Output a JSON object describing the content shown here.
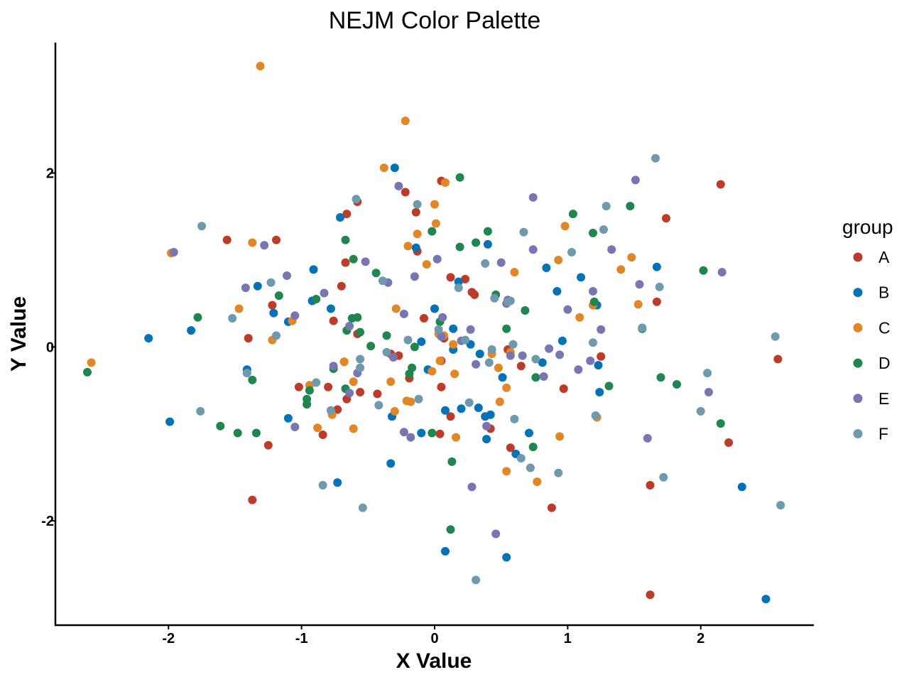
{
  "chart_data": {
    "type": "scatter",
    "title": "NEJM Color Palette",
    "xlabel": "X Value",
    "ylabel": "Y Value",
    "xlim": [
      -2.85,
      2.85
    ],
    "ylim": [
      -3.2,
      3.5
    ],
    "xticks": [
      -2,
      -1,
      0,
      1,
      2
    ],
    "yticks": [
      -2,
      0,
      2
    ],
    "grid": false,
    "legend": {
      "title": "group",
      "placement": "right"
    },
    "series": [
      {
        "name": "A",
        "color": "#BC3C29",
        "points": [
          [
            -1.56,
            1.23
          ],
          [
            -1.19,
            1.23
          ],
          [
            -0.66,
            1.53
          ],
          [
            -0.58,
            1.67
          ],
          [
            -0.67,
            0.97
          ],
          [
            -0.7,
            0.7
          ],
          [
            -0.76,
            0.3
          ],
          [
            -1.4,
            0.1
          ],
          [
            -1.22,
            0.48
          ],
          [
            -0.22,
            1.78
          ],
          [
            -0.13,
            1.1
          ],
          [
            -0.14,
            1.55
          ],
          [
            0.05,
            1.91
          ],
          [
            0.12,
            0.8
          ],
          [
            0.23,
            0.78
          ],
          [
            0.28,
            0.63
          ],
          [
            0.3,
            0.6
          ],
          [
            0.07,
            0.1
          ],
          [
            -0.08,
            0.33
          ],
          [
            -0.27,
            -0.1
          ],
          [
            -0.33,
            -0.08
          ],
          [
            -0.58,
            0.15
          ],
          [
            -0.68,
            -0.17
          ],
          [
            -0.43,
            -0.54
          ],
          [
            -0.56,
            -0.52
          ],
          [
            -0.66,
            -0.6
          ],
          [
            -0.8,
            -0.46
          ],
          [
            -0.73,
            -0.72
          ],
          [
            -1.02,
            -0.46
          ],
          [
            -0.84,
            -1.01
          ],
          [
            -1.25,
            -1.13
          ],
          [
            -1.37,
            -1.76
          ],
          [
            -0.19,
            -0.36
          ],
          [
            0.05,
            -0.46
          ],
          [
            0.05,
            -0.16
          ],
          [
            0.04,
            -1.0
          ],
          [
            0.12,
            -0.8
          ],
          [
            0.42,
            -0.94
          ],
          [
            0.57,
            -1.16
          ],
          [
            0.55,
            -0.03
          ],
          [
            0.65,
            -0.22
          ],
          [
            0.88,
            -1.85
          ],
          [
            0.97,
            -0.48
          ],
          [
            1.25,
            -0.11
          ],
          [
            1.62,
            -1.59
          ],
          [
            1.62,
            -2.85
          ],
          [
            1.67,
            0.52
          ],
          [
            1.74,
            1.48
          ],
          [
            2.15,
            1.87
          ],
          [
            2.21,
            -1.1
          ],
          [
            2.58,
            -0.14
          ]
        ]
      },
      {
        "name": "B",
        "color": "#0072B5",
        "points": [
          [
            -2.15,
            0.1
          ],
          [
            -1.99,
            -0.86
          ],
          [
            -1.83,
            0.19
          ],
          [
            -1.41,
            -0.26
          ],
          [
            -1.33,
            0.7
          ],
          [
            -1.21,
            0.39
          ],
          [
            -1.1,
            0.29
          ],
          [
            -1.1,
            -0.82
          ],
          [
            -0.91,
            0.89
          ],
          [
            -0.92,
            0.53
          ],
          [
            -0.78,
            0.44
          ],
          [
            -0.71,
            1.49
          ],
          [
            -0.73,
            -1.56
          ],
          [
            -0.3,
            2.06
          ],
          [
            -0.32,
            -0.8
          ],
          [
            -0.33,
            -1.34
          ],
          [
            -0.14,
            1.14
          ],
          [
            -0.1,
            0.06
          ],
          [
            -0.1,
            -0.99
          ],
          [
            -0.05,
            -0.26
          ],
          [
            0.0,
            0.44
          ],
          [
            0.08,
            -0.73
          ],
          [
            0.08,
            -2.35
          ],
          [
            0.14,
            0.21
          ],
          [
            0.14,
            -0.03
          ],
          [
            0.18,
            0.75
          ],
          [
            0.2,
            -0.71
          ],
          [
            0.27,
            0.03
          ],
          [
            0.34,
            -0.08
          ],
          [
            0.33,
            -0.7
          ],
          [
            0.38,
            -0.8
          ],
          [
            0.39,
            -1.06
          ],
          [
            0.4,
            1.18
          ],
          [
            0.42,
            -0.78
          ],
          [
            0.51,
            -0.35
          ],
          [
            0.54,
            -2.42
          ],
          [
            0.61,
            -1.23
          ],
          [
            0.71,
            -0.99
          ],
          [
            0.81,
            -0.18
          ],
          [
            0.84,
            0.91
          ],
          [
            0.92,
            0.64
          ],
          [
            0.96,
            0.07
          ],
          [
            1.1,
            0.8
          ],
          [
            1.22,
            0.48
          ],
          [
            1.23,
            -0.21
          ],
          [
            1.24,
            -0.52
          ],
          [
            1.67,
            0.92
          ],
          [
            2.31,
            -1.61
          ],
          [
            2.49,
            -2.9
          ]
        ]
      },
      {
        "name": "C",
        "color": "#E18727",
        "points": [
          [
            -2.58,
            -0.18
          ],
          [
            -1.98,
            1.08
          ],
          [
            -1.47,
            0.44
          ],
          [
            -1.37,
            1.2
          ],
          [
            -1.22,
            0.08
          ],
          [
            -1.31,
            3.23
          ],
          [
            -0.94,
            -0.44
          ],
          [
            -0.88,
            -0.93
          ],
          [
            -1.07,
            0.3
          ],
          [
            -0.77,
            -0.78
          ],
          [
            -0.68,
            -0.17
          ],
          [
            -0.61,
            -0.4
          ],
          [
            -0.61,
            -0.94
          ],
          [
            -0.38,
            2.06
          ],
          [
            -0.33,
            -0.4
          ],
          [
            -0.3,
            -0.74
          ],
          [
            -0.29,
            0.44
          ],
          [
            -0.22,
            2.6
          ],
          [
            -0.2,
            1.16
          ],
          [
            -0.18,
            -0.63
          ],
          [
            -0.21,
            -0.62
          ],
          [
            -0.13,
            1.3
          ],
          [
            -0.06,
            0.95
          ],
          [
            -0.02,
            -0.28
          ],
          [
            0.0,
            1.64
          ],
          [
            0.01,
            1.42
          ],
          [
            0.03,
            0.15
          ],
          [
            0.04,
            -0.16
          ],
          [
            0.07,
            0.13
          ],
          [
            0.08,
            1.89
          ],
          [
            0.14,
            0.03
          ],
          [
            0.15,
            -0.31
          ],
          [
            0.16,
            -1.04
          ],
          [
            0.43,
            -0.08
          ],
          [
            0.48,
            -0.24
          ],
          [
            0.49,
            -0.63
          ],
          [
            0.54,
            -1.43
          ],
          [
            0.54,
            -0.47
          ],
          [
            0.57,
            -0.06
          ],
          [
            0.6,
            0.86
          ],
          [
            0.77,
            -1.55
          ],
          [
            0.93,
            1.0
          ],
          [
            0.94,
            -1.03
          ],
          [
            0.98,
            1.39
          ],
          [
            1.09,
            0.34
          ],
          [
            1.19,
            0.48
          ],
          [
            1.22,
            -0.81
          ],
          [
            1.4,
            0.89
          ],
          [
            1.48,
            1.03
          ],
          [
            1.53,
            0.49
          ]
        ]
      },
      {
        "name": "D",
        "color": "#20854E",
        "points": [
          [
            -2.61,
            -0.29
          ],
          [
            -1.78,
            0.34
          ],
          [
            -1.61,
            -0.91
          ],
          [
            -1.48,
            -0.99
          ],
          [
            -1.37,
            -0.38
          ],
          [
            -1.34,
            -0.99
          ],
          [
            -1.17,
            0.59
          ],
          [
            -0.96,
            -0.6
          ],
          [
            -0.96,
            -0.66
          ],
          [
            -0.94,
            -0.5
          ],
          [
            -0.89,
            0.55
          ],
          [
            -0.76,
            -0.25
          ],
          [
            -0.67,
            1.23
          ],
          [
            -0.66,
            0.19
          ],
          [
            -0.67,
            -0.48
          ],
          [
            -0.61,
            1.01
          ],
          [
            -0.58,
            0.34
          ],
          [
            -0.56,
            0.17
          ],
          [
            -0.48,
            0.01
          ],
          [
            -0.44,
            0.85
          ],
          [
            -0.36,
            0.13
          ],
          [
            -0.19,
            -0.31
          ],
          [
            -0.17,
            -0.24
          ],
          [
            -0.15,
            0.0
          ],
          [
            -0.02,
            1.33
          ],
          [
            -0.02,
            -0.99
          ],
          [
            0.04,
            0.29
          ],
          [
            0.13,
            -1.32
          ],
          [
            0.12,
            -2.1
          ],
          [
            0.19,
            1.95
          ],
          [
            0.19,
            1.15
          ],
          [
            0.31,
            1.2
          ],
          [
            0.4,
            1.33
          ],
          [
            0.46,
            0.6
          ],
          [
            0.54,
            0.21
          ],
          [
            0.68,
            0.42
          ],
          [
            0.74,
            -1.15
          ],
          [
            0.76,
            -0.35
          ],
          [
            1.04,
            1.53
          ],
          [
            1.19,
            1.31
          ],
          [
            1.2,
            0.52
          ],
          [
            1.31,
            -0.45
          ],
          [
            1.47,
            1.62
          ],
          [
            1.56,
            0.21
          ],
          [
            1.7,
            -0.35
          ],
          [
            1.82,
            -0.43
          ],
          [
            2.02,
            0.88
          ],
          [
            2.15,
            -0.88
          ],
          [
            -0.62,
            0.33
          ]
        ]
      },
      {
        "name": "E",
        "color": "#7876B1",
        "points": [
          [
            -1.96,
            1.09
          ],
          [
            -1.42,
            0.68
          ],
          [
            -1.28,
            1.17
          ],
          [
            -1.11,
            0.82
          ],
          [
            -1.05,
            0.36
          ],
          [
            -1.05,
            -0.92
          ],
          [
            -0.83,
            0.62
          ],
          [
            -0.76,
            -0.22
          ],
          [
            -0.64,
            0.24
          ],
          [
            -0.64,
            -0.53
          ],
          [
            -0.58,
            -0.3
          ],
          [
            -0.52,
            0.98
          ],
          [
            -0.35,
            0.74
          ],
          [
            -0.31,
            -0.12
          ],
          [
            -0.27,
            1.85
          ],
          [
            -0.23,
            0.38
          ],
          [
            -0.23,
            -0.98
          ],
          [
            -0.15,
            0.81
          ],
          [
            -0.18,
            -1.04
          ],
          [
            0.02,
            1.01
          ],
          [
            0.06,
            0.34
          ],
          [
            0.2,
            0.07
          ],
          [
            0.27,
            0.2
          ],
          [
            0.28,
            -1.61
          ],
          [
            0.31,
            -0.2
          ],
          [
            0.39,
            -0.91
          ],
          [
            0.46,
            -2.15
          ],
          [
            0.5,
            0.97
          ],
          [
            0.54,
            0.5
          ],
          [
            0.55,
            0.54
          ],
          [
            0.57,
            -0.1
          ],
          [
            0.66,
            -0.1
          ],
          [
            0.74,
            1.72
          ],
          [
            0.74,
            1.12
          ],
          [
            0.82,
            -0.34
          ],
          [
            0.86,
            -0.02
          ],
          [
            0.94,
            -0.09
          ],
          [
            1.0,
            0.43
          ],
          [
            1.08,
            -0.26
          ],
          [
            1.17,
            -0.16
          ],
          [
            1.19,
            0.64
          ],
          [
            1.25,
            0.2
          ],
          [
            1.33,
            1.12
          ],
          [
            1.51,
            1.92
          ],
          [
            1.54,
            0.72
          ],
          [
            1.6,
            -1.05
          ],
          [
            2.06,
            -0.52
          ],
          [
            2.16,
            0.86
          ],
          [
            0.05,
            0.12
          ]
        ]
      },
      {
        "name": "F",
        "color": "#6F99AD",
        "points": [
          [
            -1.75,
            1.39
          ],
          [
            -1.76,
            -0.74
          ],
          [
            -1.52,
            0.33
          ],
          [
            -1.41,
            -0.3
          ],
          [
            -1.23,
            0.74
          ],
          [
            -1.19,
            0.13
          ],
          [
            -0.89,
            -0.41
          ],
          [
            -0.84,
            -1.59
          ],
          [
            -0.78,
            -0.73
          ],
          [
            -0.59,
            1.7
          ],
          [
            -0.56,
            -0.14
          ],
          [
            -0.56,
            -0.24
          ],
          [
            -0.54,
            -1.85
          ],
          [
            -0.42,
            -0.67
          ],
          [
            -0.39,
            0.76
          ],
          [
            -0.36,
            -0.06
          ],
          [
            -0.2,
            0.08
          ],
          [
            -0.13,
            1.64
          ],
          [
            -0.12,
            -0.6
          ],
          [
            0.03,
            0.2
          ],
          [
            0.18,
            0.68
          ],
          [
            0.23,
            0.08
          ],
          [
            0.26,
            -0.64
          ],
          [
            0.31,
            -2.68
          ],
          [
            0.38,
            0.96
          ],
          [
            0.41,
            -0.18
          ],
          [
            0.43,
            -0.03
          ],
          [
            0.45,
            0.56
          ],
          [
            0.55,
            0.52
          ],
          [
            0.57,
            0.53
          ],
          [
            0.59,
            0.03
          ],
          [
            0.6,
            -0.83
          ],
          [
            0.65,
            -1.28
          ],
          [
            0.67,
            1.32
          ],
          [
            0.72,
            -1.39
          ],
          [
            0.76,
            -0.14
          ],
          [
            0.93,
            -1.45
          ],
          [
            1.03,
            1.09
          ],
          [
            1.19,
            0.05
          ],
          [
            1.21,
            -0.79
          ],
          [
            1.27,
            1.35
          ],
          [
            1.29,
            1.62
          ],
          [
            1.56,
            0.22
          ],
          [
            1.66,
            2.17
          ],
          [
            1.69,
            0.69
          ],
          [
            1.72,
            -1.5
          ],
          [
            2.0,
            -0.74
          ],
          [
            2.05,
            -0.3
          ],
          [
            2.56,
            0.12
          ],
          [
            2.6,
            -1.82
          ]
        ]
      }
    ]
  }
}
